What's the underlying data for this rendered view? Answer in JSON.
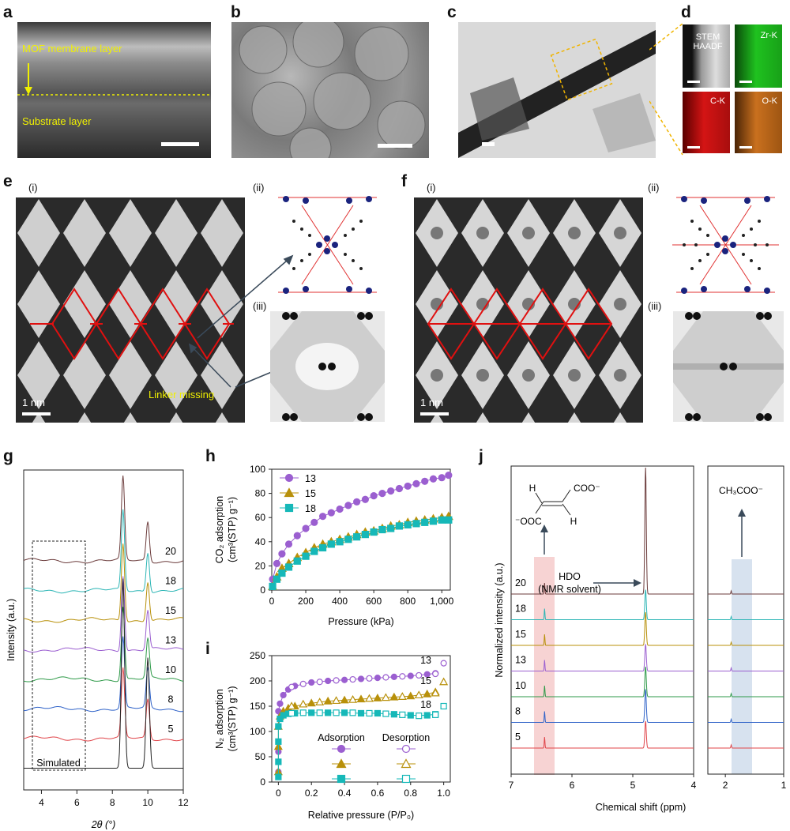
{
  "panels": {
    "a": {
      "label": "a",
      "text_membrane": "MOF membrane layer",
      "text_substrate": "Substrate layer"
    },
    "b": {
      "label": "b"
    },
    "c": {
      "label": "c"
    },
    "d": {
      "label": "d",
      "tiles": [
        "STEM HAADF",
        "Zr-K",
        "C-K",
        "O-K"
      ],
      "colors": {
        "stem": "#8a8a8a",
        "zr": "#1fc21f",
        "c": "#d41414",
        "o": "#c9701e"
      }
    },
    "e": {
      "label": "e",
      "sub_i": "(i)",
      "sub_ii": "(ii)",
      "sub_iii": "(iii)",
      "scale": "1 nm",
      "annotation": "Linker missing"
    },
    "f": {
      "label": "f",
      "sub_i": "(i)",
      "sub_ii": "(ii)",
      "sub_iii": "(iii)",
      "scale": "1 nm"
    },
    "g": {
      "label": "g"
    },
    "h": {
      "label": "h"
    },
    "i": {
      "label": "i"
    },
    "j": {
      "label": "j",
      "hdo": "HDO",
      "hdo_sub": "(NMR solvent)",
      "acetate": "CH₃COO⁻",
      "fumarate_top": "COO⁻",
      "fumarate_bottom": "⁻OOC",
      "h_top": "H",
      "h_bottom": "H"
    }
  },
  "chart_data": [
    {
      "id": "g",
      "type": "line",
      "title": "",
      "xlabel": "2θ (°)",
      "ylabel": "Intensity (a.u.)",
      "xlim": [
        3,
        12
      ],
      "xticks": [
        "4",
        "6",
        "8",
        "10",
        "12"
      ],
      "box_label": "Simulated",
      "peaks": [
        8.6,
        10.0
      ],
      "series": [
        {
          "name": "20",
          "color": "#6b3b3b"
        },
        {
          "name": "18",
          "color": "#2bb5b5"
        },
        {
          "name": "15",
          "color": "#b8900a"
        },
        {
          "name": "13",
          "color": "#9b5fd0"
        },
        {
          "name": "10",
          "color": "#2e9a48"
        },
        {
          "name": "8",
          "color": "#2f62c8"
        },
        {
          "name": "5",
          "color": "#e0454a"
        },
        {
          "name": "Simulated",
          "color": "#222222"
        }
      ]
    },
    {
      "id": "h",
      "type": "line",
      "xlabel": "Pressure (kPa)",
      "ylabel_line1": "CO₂ adsorption",
      "ylabel_line2": "(cm³(STP) g⁻¹)",
      "xlim": [
        0,
        1050
      ],
      "ylim": [
        0,
        100
      ],
      "xticks": [
        "0",
        "200",
        "400",
        "600",
        "800",
        "1,000"
      ],
      "yticks": [
        "0",
        "20",
        "40",
        "60",
        "80",
        "100"
      ],
      "x": [
        5,
        30,
        60,
        100,
        150,
        200,
        250,
        300,
        350,
        400,
        450,
        500,
        550,
        600,
        650,
        700,
        750,
        800,
        850,
        900,
        950,
        1000,
        1040
      ],
      "series": [
        {
          "name": "13",
          "color": "#9b5fd0",
          "marker": "circle",
          "values": [
            9,
            22,
            30,
            38,
            45,
            51,
            56,
            61,
            64,
            67,
            70,
            73,
            75,
            78,
            80,
            82,
            84,
            86,
            88,
            90,
            92,
            93,
            95
          ]
        },
        {
          "name": "15",
          "color": "#b8900a",
          "marker": "triangle",
          "values": [
            3,
            11,
            18,
            22,
            27,
            31,
            35,
            38,
            40,
            42,
            44,
            46,
            48,
            49,
            51,
            53,
            54,
            56,
            57,
            58,
            59,
            60,
            61
          ]
        },
        {
          "name": "18",
          "color": "#16b8b8",
          "marker": "square",
          "values": [
            3,
            9,
            14,
            19,
            24,
            28,
            32,
            35,
            38,
            40,
            42,
            44,
            46,
            48,
            50,
            51,
            53,
            54,
            55,
            56,
            57,
            58,
            58
          ]
        }
      ]
    },
    {
      "id": "i",
      "type": "scatter",
      "xlabel": "Relative pressure (P/P₀)",
      "ylabel_line1": "N₂ adsorption",
      "ylabel_line2": "(cm³(STP) g⁻¹)",
      "xlim": [
        -0.04,
        1.04
      ],
      "ylim": [
        0,
        250
      ],
      "xticks": [
        "0",
        "0.2",
        "0.4",
        "0.6",
        "0.8",
        "1.0"
      ],
      "yticks": [
        "0",
        "50",
        "100",
        "150",
        "200",
        "250"
      ],
      "legend_adsorption": "Adsorption",
      "legend_desorption": "Desorption",
      "series": [
        {
          "name": "13",
          "color": "#9b5fd0",
          "marker": "circle",
          "ads_x": [
            0.0,
            0.0,
            0.0,
            0.0,
            0.01,
            0.03,
            0.06,
            0.1,
            0.2,
            0.3,
            0.4,
            0.5,
            0.6,
            0.7,
            0.8,
            0.9,
            0.95
          ],
          "ads_y": [
            20,
            60,
            110,
            140,
            155,
            172,
            183,
            190,
            197,
            200,
            202,
            204,
            206,
            208,
            210,
            213,
            215
          ],
          "des_x": [
            0.08,
            0.15,
            0.25,
            0.35,
            0.45,
            0.55,
            0.65,
            0.75,
            0.85,
            0.95,
            1.0
          ],
          "des_y": [
            188,
            194,
            198,
            201,
            203,
            205,
            207,
            209,
            211,
            214,
            235
          ]
        },
        {
          "name": "15",
          "color": "#b8900a",
          "marker": "triangle",
          "ads_x": [
            0.0,
            0.0,
            0.0,
            0.01,
            0.03,
            0.06,
            0.1,
            0.2,
            0.3,
            0.4,
            0.5,
            0.6,
            0.7,
            0.8,
            0.9,
            0.95
          ],
          "ads_y": [
            20,
            70,
            110,
            130,
            140,
            146,
            150,
            156,
            160,
            162,
            164,
            166,
            168,
            170,
            174,
            178
          ],
          "des_x": [
            0.08,
            0.15,
            0.25,
            0.35,
            0.45,
            0.55,
            0.65,
            0.75,
            0.85,
            0.95,
            1.0
          ],
          "des_y": [
            150,
            154,
            158,
            161,
            163,
            165,
            167,
            169,
            172,
            176,
            198
          ]
        },
        {
          "name": "18",
          "color": "#16b8b8",
          "marker": "square",
          "ads_x": [
            0.0,
            0.0,
            0.0,
            0.0,
            0.01,
            0.03,
            0.06,
            0.1,
            0.2,
            0.3,
            0.4,
            0.5,
            0.6,
            0.7,
            0.8,
            0.9,
            0.95
          ],
          "ads_y": [
            10,
            40,
            80,
            110,
            125,
            132,
            135,
            136,
            137,
            137,
            137,
            136,
            136,
            134,
            132,
            132,
            134
          ],
          "des_x": [
            0.08,
            0.15,
            0.25,
            0.35,
            0.45,
            0.55,
            0.65,
            0.75,
            0.85,
            0.95,
            1.0
          ],
          "des_y": [
            136,
            137,
            137,
            137,
            137,
            136,
            135,
            133,
            131,
            133,
            150
          ]
        }
      ]
    },
    {
      "id": "j",
      "type": "line",
      "xlabel": "Chemical shift (ppm)",
      "ylabel": "Normalized intensity (a.u.)",
      "xticks_left": [
        "7",
        "6",
        "5",
        "4"
      ],
      "xticks_right": [
        "2",
        "1"
      ],
      "peaks_ppm": [
        6.45,
        4.79,
        1.9
      ],
      "series": [
        {
          "name": "20",
          "color": "#6b3b3b"
        },
        {
          "name": "18",
          "color": "#2bb5b5"
        },
        {
          "name": "15",
          "color": "#b8900a"
        },
        {
          "name": "13",
          "color": "#9b5fd0"
        },
        {
          "name": "10",
          "color": "#2e9a48"
        },
        {
          "name": "8",
          "color": "#2f62c8"
        },
        {
          "name": "5",
          "color": "#e0454a"
        }
      ]
    }
  ]
}
